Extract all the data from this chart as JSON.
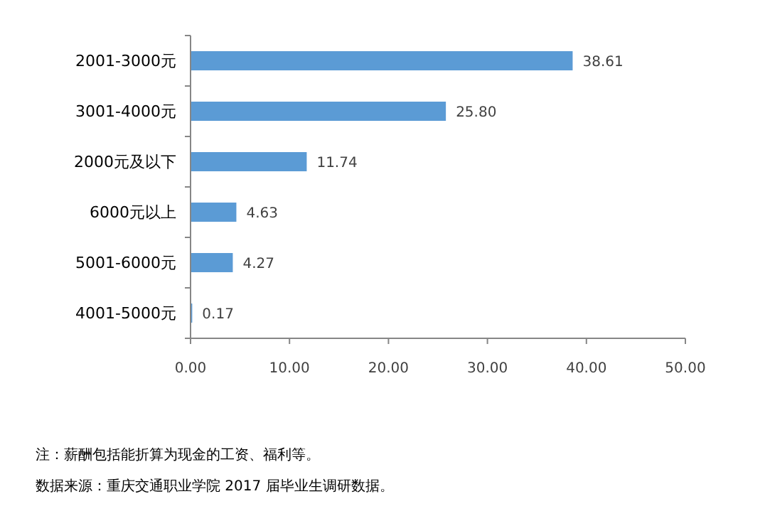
{
  "chart_data": {
    "type": "bar",
    "orientation": "horizontal",
    "categories": [
      "2001-3000元",
      "3001-4000元",
      "2000元及以下",
      "6000元以上",
      "5001-6000元",
      "4001-5000元"
    ],
    "values": [
      38.61,
      25.8,
      11.74,
      4.63,
      4.27,
      0.17
    ],
    "value_labels": [
      "38.61",
      "25.80",
      "11.74",
      "4.63",
      "4.27",
      "0.17"
    ],
    "color": "#5b9bd5",
    "xlim": [
      0,
      50
    ],
    "xticks": [
      {
        "value": 0,
        "label": "0.00"
      },
      {
        "value": 10,
        "label": "10.00"
      },
      {
        "value": 20,
        "label": "20.00"
      },
      {
        "value": 30,
        "label": "30.00"
      },
      {
        "value": 40,
        "label": "40.00"
      },
      {
        "value": 50,
        "label": "50.00"
      }
    ],
    "annotations": [
      "注：薪酬包括能折算为现金的工资、福利等。",
      "数据来源：重庆交通职业学院 2017 届毕业生调研数据。"
    ]
  }
}
